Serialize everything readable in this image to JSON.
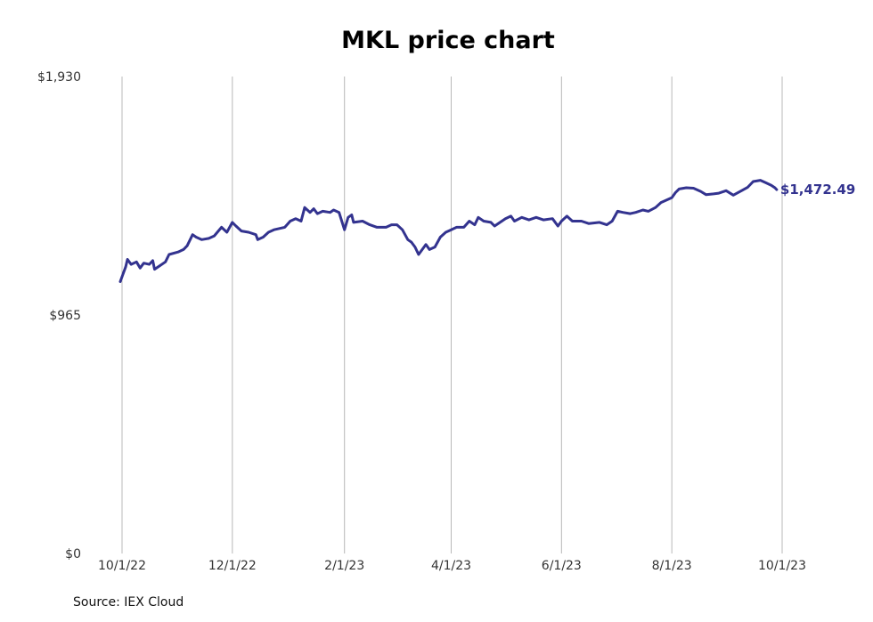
{
  "chart_data": {
    "type": "line",
    "title": "MKL price chart",
    "y_ticks": [
      "$1,930",
      "$965",
      "$0"
    ],
    "y_tick_values": [
      1930,
      965,
      0
    ],
    "ylim": [
      0,
      1930
    ],
    "x_ticks": [
      "10/1/22",
      "12/1/22",
      "2/1/23",
      "4/1/23",
      "6/1/23",
      "8/1/23",
      "10/1/23"
    ],
    "x_tick_dates": [
      "2022-10-01",
      "2022-12-01",
      "2023-02-01",
      "2023-04-01",
      "2023-06-01",
      "2023-08-01",
      "2023-10-01"
    ],
    "grid": "vertical",
    "series": [
      {
        "color": "#33338f",
        "last_label": "$1,472.49",
        "points": [
          [
            "2022-09-30",
            1100
          ],
          [
            "2022-10-01",
            1120
          ],
          [
            "2022-10-03",
            1160
          ],
          [
            "2022-10-04",
            1190
          ],
          [
            "2022-10-06",
            1170
          ],
          [
            "2022-10-09",
            1180
          ],
          [
            "2022-10-11",
            1155
          ],
          [
            "2022-10-13",
            1175
          ],
          [
            "2022-10-16",
            1170
          ],
          [
            "2022-10-18",
            1185
          ],
          [
            "2022-10-19",
            1150
          ],
          [
            "2022-10-22",
            1165
          ],
          [
            "2022-10-25",
            1180
          ],
          [
            "2022-10-27",
            1210
          ],
          [
            "2022-11-01",
            1220
          ],
          [
            "2022-11-04",
            1230
          ],
          [
            "2022-11-06",
            1245
          ],
          [
            "2022-11-09",
            1290
          ],
          [
            "2022-11-11",
            1280
          ],
          [
            "2022-11-14",
            1270
          ],
          [
            "2022-11-18",
            1275
          ],
          [
            "2022-11-21",
            1285
          ],
          [
            "2022-11-25",
            1320
          ],
          [
            "2022-11-28",
            1300
          ],
          [
            "2022-12-01",
            1340
          ],
          [
            "2022-12-03",
            1325
          ],
          [
            "2022-12-06",
            1305
          ],
          [
            "2022-12-10",
            1300
          ],
          [
            "2022-12-14",
            1290
          ],
          [
            "2022-12-15",
            1270
          ],
          [
            "2022-12-18",
            1280
          ],
          [
            "2022-12-21",
            1300
          ],
          [
            "2022-12-24",
            1310
          ],
          [
            "2022-12-27",
            1315
          ],
          [
            "2022-12-30",
            1320
          ],
          [
            "2023-01-02",
            1345
          ],
          [
            "2023-01-05",
            1355
          ],
          [
            "2023-01-08",
            1345
          ],
          [
            "2023-01-10",
            1400
          ],
          [
            "2023-01-13",
            1380
          ],
          [
            "2023-01-15",
            1395
          ],
          [
            "2023-01-17",
            1375
          ],
          [
            "2023-01-20",
            1385
          ],
          [
            "2023-01-24",
            1380
          ],
          [
            "2023-01-26",
            1390
          ],
          [
            "2023-01-29",
            1380
          ],
          [
            "2023-02-01",
            1310
          ],
          [
            "2023-02-03",
            1360
          ],
          [
            "2023-02-05",
            1370
          ],
          [
            "2023-02-06",
            1340
          ],
          [
            "2023-02-11",
            1345
          ],
          [
            "2023-02-15",
            1330
          ],
          [
            "2023-02-19",
            1320
          ],
          [
            "2023-02-24",
            1320
          ],
          [
            "2023-02-27",
            1330
          ],
          [
            "2023-03-02",
            1330
          ],
          [
            "2023-03-05",
            1310
          ],
          [
            "2023-03-08",
            1270
          ],
          [
            "2023-03-10",
            1260
          ],
          [
            "2023-03-12",
            1240
          ],
          [
            "2023-03-14",
            1210
          ],
          [
            "2023-03-16",
            1230
          ],
          [
            "2023-03-18",
            1250
          ],
          [
            "2023-03-20",
            1230
          ],
          [
            "2023-03-23",
            1240
          ],
          [
            "2023-03-26",
            1280
          ],
          [
            "2023-03-29",
            1300
          ],
          [
            "2023-04-01",
            1310
          ],
          [
            "2023-04-04",
            1320
          ],
          [
            "2023-04-08",
            1320
          ],
          [
            "2023-04-11",
            1345
          ],
          [
            "2023-04-14",
            1330
          ],
          [
            "2023-04-16",
            1360
          ],
          [
            "2023-04-19",
            1345
          ],
          [
            "2023-04-23",
            1340
          ],
          [
            "2023-04-25",
            1325
          ],
          [
            "2023-04-27",
            1335
          ],
          [
            "2023-05-01",
            1355
          ],
          [
            "2023-05-04",
            1365
          ],
          [
            "2023-05-06",
            1345
          ],
          [
            "2023-05-10",
            1360
          ],
          [
            "2023-05-14",
            1350
          ],
          [
            "2023-05-18",
            1360
          ],
          [
            "2023-05-22",
            1350
          ],
          [
            "2023-05-27",
            1355
          ],
          [
            "2023-05-30",
            1325
          ],
          [
            "2023-06-01",
            1345
          ],
          [
            "2023-06-04",
            1365
          ],
          [
            "2023-06-07",
            1345
          ],
          [
            "2023-06-12",
            1345
          ],
          [
            "2023-06-16",
            1335
          ],
          [
            "2023-06-22",
            1340
          ],
          [
            "2023-06-26",
            1330
          ],
          [
            "2023-06-29",
            1345
          ],
          [
            "2023-07-02",
            1385
          ],
          [
            "2023-07-05",
            1380
          ],
          [
            "2023-07-09",
            1375
          ],
          [
            "2023-07-12",
            1380
          ],
          [
            "2023-07-16",
            1390
          ],
          [
            "2023-07-19",
            1385
          ],
          [
            "2023-07-23",
            1400
          ],
          [
            "2023-07-26",
            1420
          ],
          [
            "2023-08-01",
            1440
          ],
          [
            "2023-08-03",
            1460
          ],
          [
            "2023-08-05",
            1475
          ],
          [
            "2023-08-09",
            1480
          ],
          [
            "2023-08-13",
            1478
          ],
          [
            "2023-08-17",
            1465
          ],
          [
            "2023-08-20",
            1452
          ],
          [
            "2023-08-24",
            1455
          ],
          [
            "2023-08-27",
            1458
          ],
          [
            "2023-08-31",
            1468
          ],
          [
            "2023-09-04",
            1450
          ],
          [
            "2023-09-09",
            1470
          ],
          [
            "2023-09-12",
            1482
          ],
          [
            "2023-09-15",
            1505
          ],
          [
            "2023-09-19",
            1510
          ],
          [
            "2023-09-22",
            1500
          ],
          [
            "2023-09-25",
            1490
          ],
          [
            "2023-09-27",
            1480
          ],
          [
            "2023-09-28",
            1472.49
          ]
        ]
      }
    ],
    "source": "Source: IEX Cloud"
  }
}
